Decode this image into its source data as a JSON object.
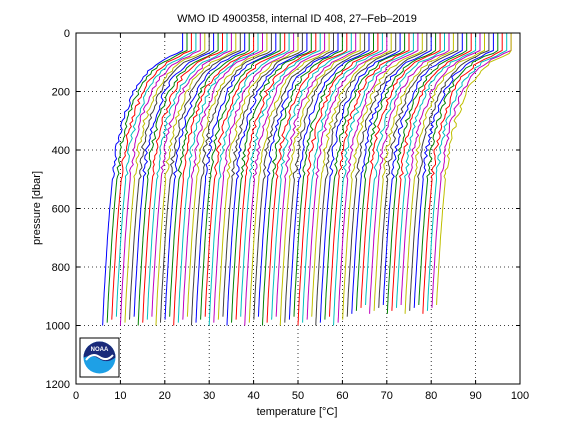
{
  "chart_data": {
    "type": "line",
    "title": "WMO ID 4900358, internal ID 408, 27–Feb–2019",
    "xlabel": "temperature [°C]",
    "ylabel": "pressure [dbar]",
    "xlim": [
      0,
      100
    ],
    "ylim": [
      0,
      1200
    ],
    "y_reversed": true,
    "grid": true,
    "xticks": [
      0,
      10,
      20,
      30,
      40,
      50,
      60,
      70,
      80,
      90,
      100
    ],
    "yticks": [
      0,
      200,
      400,
      600,
      800,
      1000,
      1200
    ],
    "series_colors": [
      "#0000ff",
      "#008000",
      "#ff0000",
      "#00bfbf",
      "#bf00bf",
      "#bfbf00",
      "#404040"
    ],
    "profiles": {
      "count": 76,
      "first_deep_temperature": 6.0,
      "temperature_offset_step": 1.0,
      "max_pressure": 1000,
      "profile_shape": {
        "pressure": [
          0,
          60,
          100,
          150,
          200,
          300,
          400,
          500,
          600,
          700,
          800,
          900,
          1000
        ],
        "temperature_above_deep": [
          18.0,
          18.0,
          12.5,
          9.0,
          7.0,
          4.5,
          3.0,
          2.2,
          1.6,
          1.1,
          0.7,
          0.3,
          0.0
        ]
      }
    }
  },
  "logo": {
    "text": "NOAA",
    "colors": {
      "top": "#1a2a7a",
      "bottom": "#1ea0e6",
      "outline": "#ffffff"
    }
  }
}
